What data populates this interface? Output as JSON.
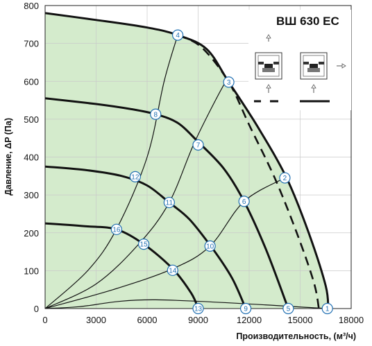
{
  "chart_data": {
    "type": "line",
    "title": "ВШ 630 ЕС",
    "xlabel": "Производительность, (м³/ч)",
    "ylabel": "Давление, ΔP (Па)",
    "xlim": [
      0,
      18000
    ],
    "ylim": [
      0,
      800
    ],
    "x_ticks": [
      "0",
      "3000",
      "6000",
      "9000",
      "12000",
      "15000",
      "18000"
    ],
    "y_ticks": [
      "0",
      "100",
      "200",
      "300",
      "400",
      "500",
      "600",
      "700",
      "800"
    ],
    "grid": true,
    "operating_area_color": "#d4ebcc",
    "fan_curves": [
      {
        "style": "solid",
        "points": [
          [
            0,
            780
          ],
          [
            3000,
            762
          ],
          [
            6000,
            742
          ],
          [
            7800,
            722
          ],
          [
            9500,
            685
          ],
          [
            10800,
            598
          ],
          [
            12500,
            480
          ],
          [
            14200,
            345
          ],
          [
            15500,
            200
          ],
          [
            16500,
            60
          ],
          [
            16650,
            0
          ]
        ]
      },
      {
        "style": "dashed",
        "points": [
          [
            7800,
            722
          ],
          [
            9200,
            690
          ],
          [
            10800,
            598
          ],
          [
            12000,
            485
          ],
          [
            13500,
            345
          ],
          [
            14800,
            200
          ],
          [
            15800,
            70
          ],
          [
            16100,
            0
          ]
        ]
      },
      {
        "style": "solid",
        "points": [
          [
            0,
            555
          ],
          [
            3000,
            540
          ],
          [
            5000,
            527
          ],
          [
            6500,
            513
          ],
          [
            7800,
            490
          ],
          [
            9000,
            440
          ],
          [
            10500,
            370
          ],
          [
            11700,
            283
          ],
          [
            13000,
            155
          ],
          [
            14300,
            0
          ]
        ]
      },
      {
        "style": "solid",
        "points": [
          [
            0,
            375
          ],
          [
            2500,
            365
          ],
          [
            4500,
            350
          ],
          [
            6000,
            325
          ],
          [
            7300,
            280
          ],
          [
            8500,
            235
          ],
          [
            9900,
            155
          ],
          [
            11000,
            80
          ],
          [
            11800,
            0
          ]
        ]
      },
      {
        "style": "solid",
        "points": [
          [
            0,
            225
          ],
          [
            2500,
            217
          ],
          [
            4200,
            209
          ],
          [
            5800,
            170
          ],
          [
            7500,
            105
          ],
          [
            8600,
            40
          ],
          [
            9000,
            0
          ]
        ]
      }
    ],
    "system_curves": [
      {
        "points": [
          [
            0,
            0
          ],
          [
            2500,
            100
          ],
          [
            4200,
            210
          ],
          [
            6000,
            400
          ],
          [
            7000,
            600
          ],
          [
            7800,
            722
          ]
        ]
      },
      {
        "points": [
          [
            0,
            0
          ],
          [
            3000,
            65
          ],
          [
            5500,
            170
          ],
          [
            7300,
            280
          ],
          [
            8800,
            440
          ],
          [
            10500,
            590
          ],
          [
            10800,
            598
          ]
        ]
      },
      {
        "points": [
          [
            0,
            0
          ],
          [
            4000,
            50
          ],
          [
            7500,
            105
          ],
          [
            9700,
            165
          ],
          [
            11700,
            283
          ],
          [
            14100,
            345
          ]
        ]
      },
      {
        "points": [
          [
            0,
            0
          ],
          [
            2000,
            5
          ],
          [
            6500,
            23
          ],
          [
            16600,
            0
          ]
        ]
      }
    ],
    "markers": [
      {
        "label": "1",
        "x": 16600,
        "y": 0
      },
      {
        "label": "2",
        "x": 14100,
        "y": 345
      },
      {
        "label": "3",
        "x": 10800,
        "y": 598
      },
      {
        "label": "4",
        "x": 7800,
        "y": 722
      },
      {
        "label": "5",
        "x": 14300,
        "y": 0
      },
      {
        "label": "6",
        "x": 11700,
        "y": 283
      },
      {
        "label": "7",
        "x": 9000,
        "y": 432
      },
      {
        "label": "8",
        "x": 6500,
        "y": 513
      },
      {
        "label": "9",
        "x": 11800,
        "y": 0
      },
      {
        "label": "10",
        "x": 9700,
        "y": 165
      },
      {
        "label": "11",
        "x": 7300,
        "y": 280
      },
      {
        "label": "12",
        "x": 5300,
        "y": 348
      },
      {
        "label": "13",
        "x": 9000,
        "y": 0
      },
      {
        "label": "14",
        "x": 7500,
        "y": 101
      },
      {
        "label": "15",
        "x": 5800,
        "y": 170
      },
      {
        "label": "16",
        "x": 4200,
        "y": 209
      }
    ]
  }
}
